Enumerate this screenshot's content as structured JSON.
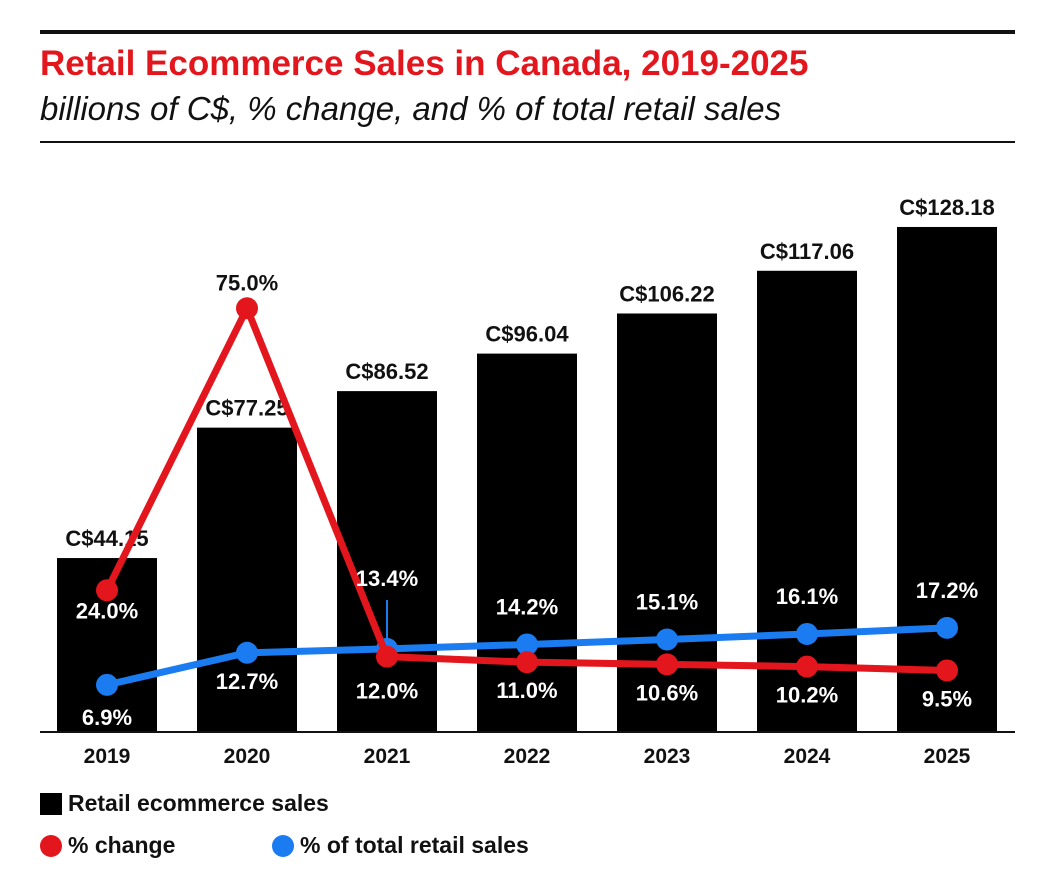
{
  "chart_data": {
    "type": "bar+line",
    "title": "Retail Ecommerce Sales in Canada, 2019-2025",
    "subtitle": "billions of C$, % change, and % of total retail sales",
    "categories": [
      "2019",
      "2020",
      "2021",
      "2022",
      "2023",
      "2024",
      "2025"
    ],
    "series": [
      {
        "name": "Retail ecommerce sales",
        "type": "bar",
        "color": "#000000",
        "values": [
          44.15,
          77.25,
          86.52,
          96.04,
          106.22,
          117.06,
          128.18
        ],
        "labels": [
          "C$44.15",
          "C$77.25",
          "C$86.52",
          "C$96.04",
          "C$106.22",
          "C$117.06",
          "C$128.18"
        ]
      },
      {
        "name": "% change",
        "type": "line",
        "color": "#e3161d",
        "values": [
          24.0,
          75.0,
          12.0,
          11.0,
          10.6,
          10.2,
          9.5
        ],
        "labels": [
          "24.0%",
          "75.0%",
          "12.0%",
          "11.0%",
          "10.6%",
          "10.2%",
          "9.5%"
        ]
      },
      {
        "name": "% of total retail sales",
        "type": "line",
        "color": "#1a7cf0",
        "values": [
          6.9,
          12.7,
          13.4,
          14.2,
          15.1,
          16.1,
          17.2
        ],
        "labels": [
          "6.9%",
          "12.7%",
          "13.4%",
          "14.2%",
          "15.1%",
          "16.1%",
          "17.2%"
        ]
      }
    ],
    "grid": false,
    "legend": "bottom-left"
  }
}
